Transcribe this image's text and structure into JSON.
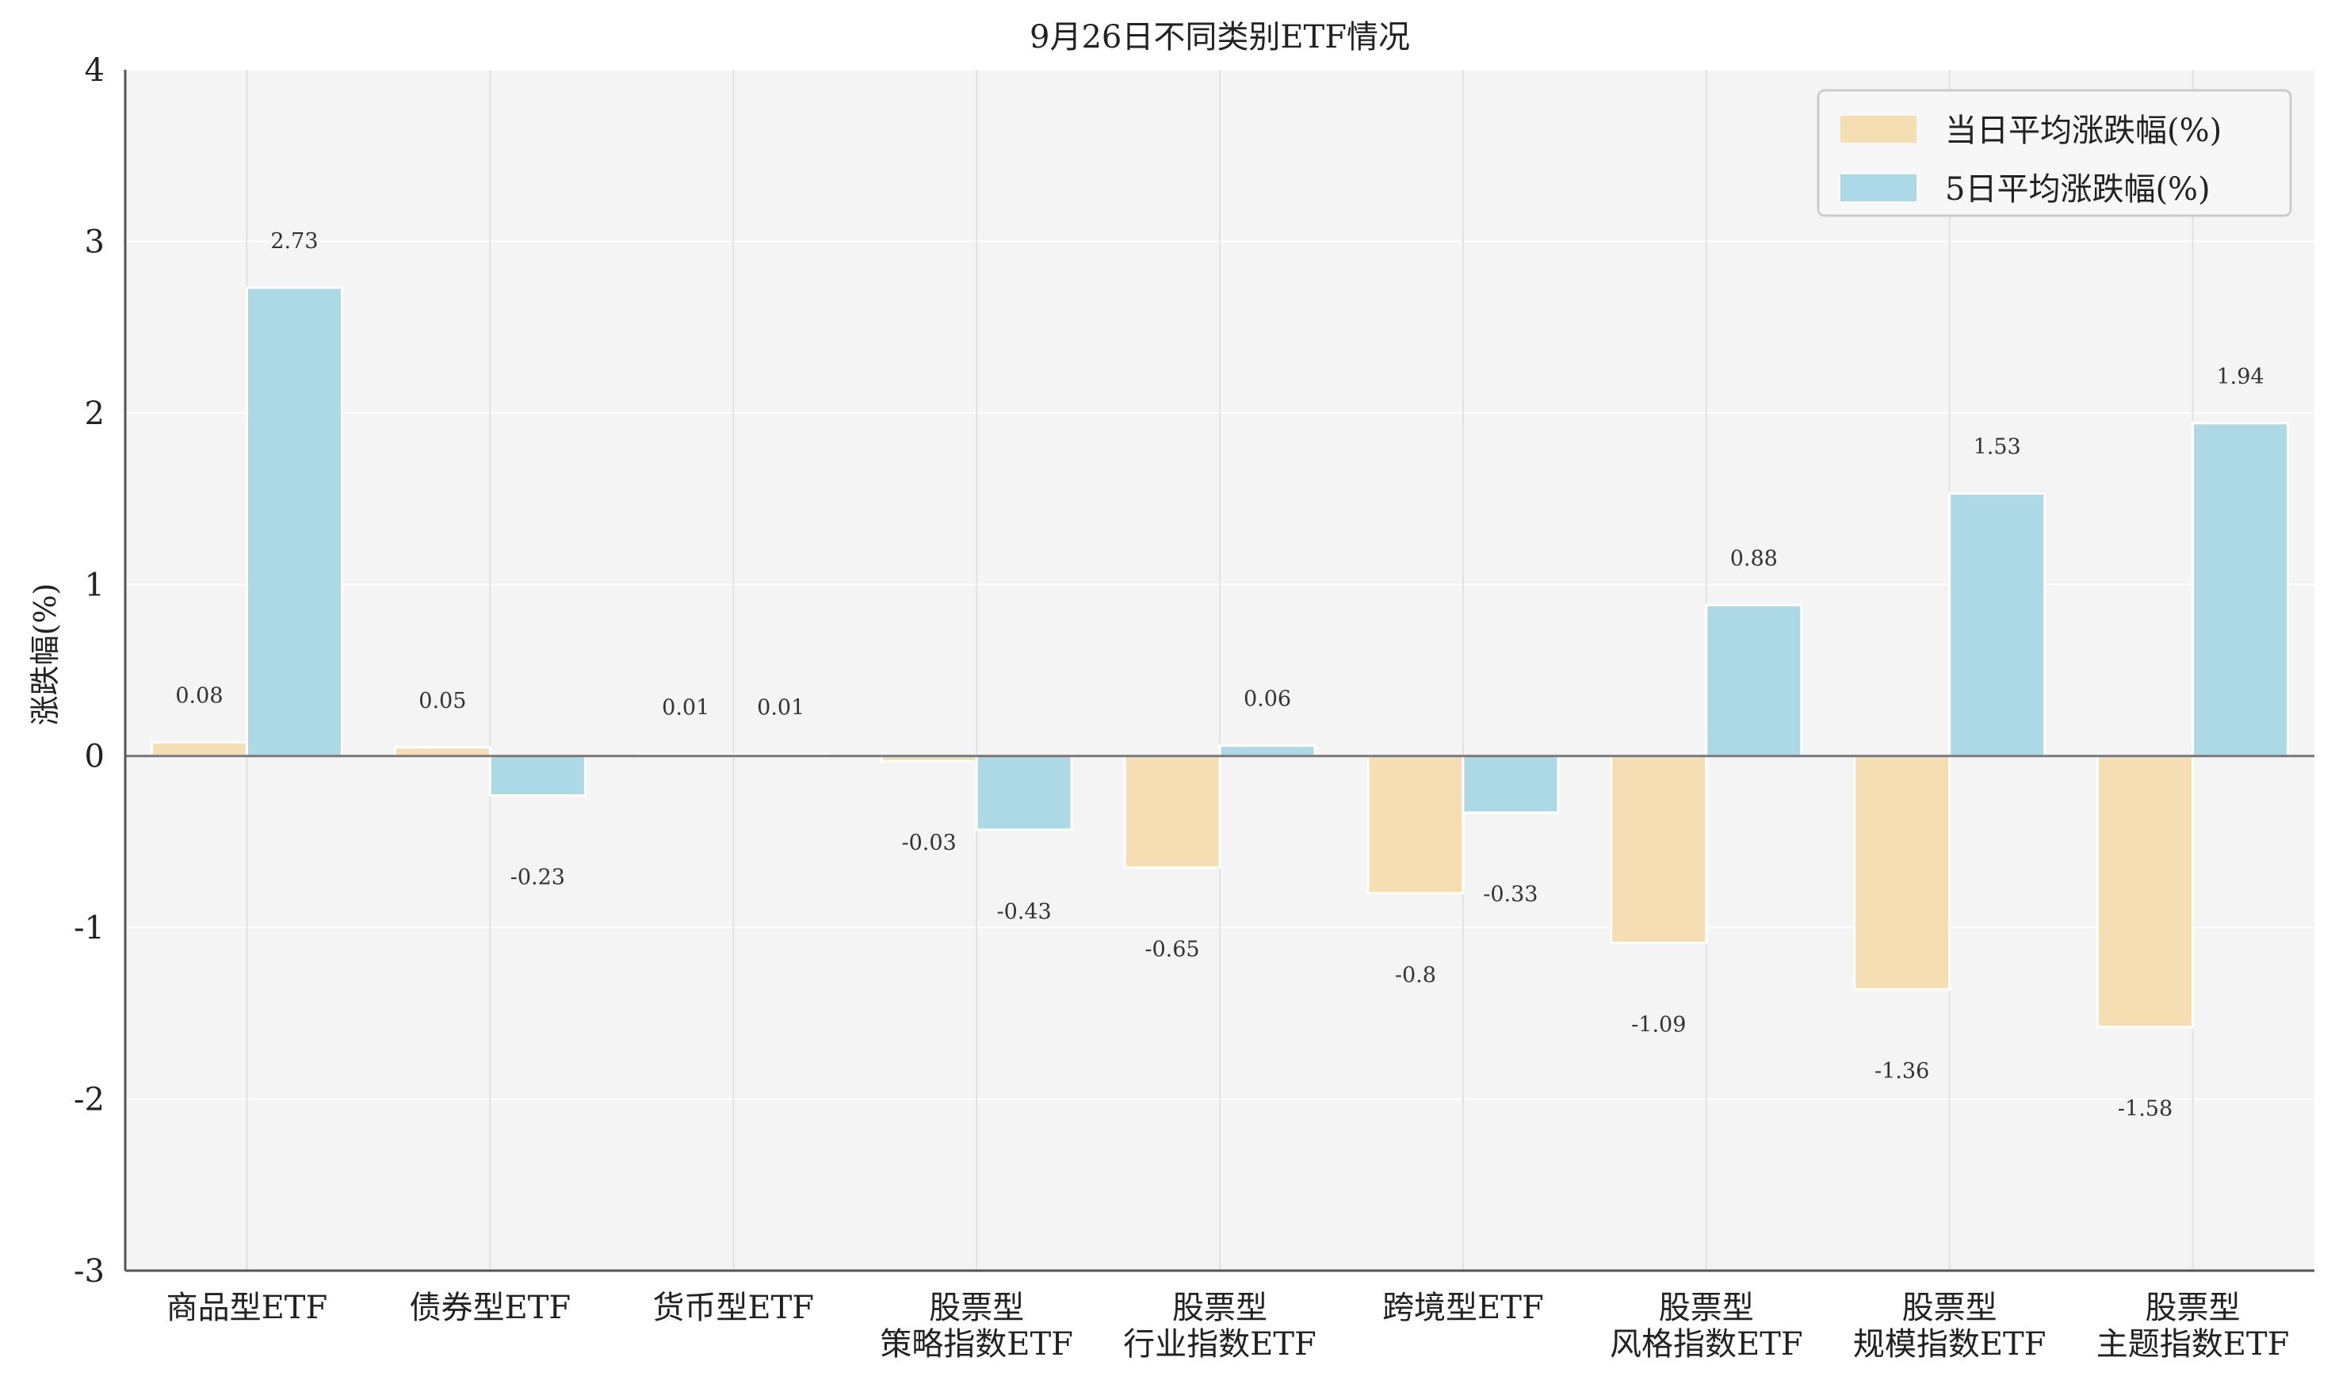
{
  "chart_data": {
    "type": "bar",
    "title": "9月26日不同类别ETF情况",
    "xlabel": "",
    "ylabel": "涨跌幅(%)",
    "ylim": [
      -3,
      4
    ],
    "yticks": [
      4,
      3,
      2,
      1,
      0,
      -1,
      -2,
      -3
    ],
    "grid": true,
    "legend_position": "top-right",
    "categories": [
      "商品型ETF",
      "债券型ETF",
      "货币型ETF",
      "股票型\n策略指数ETF",
      "股票型\n行业指数ETF",
      "跨境型ETF",
      "股票型\n风格指数ETF",
      "股票型\n规模指数ETF",
      "股票型\n主题指数ETF"
    ],
    "series": [
      {
        "name": "当日平均涨跌幅(%)",
        "color": "#F5DEB3",
        "values": [
          0.08,
          0.05,
          0.01,
          -0.03,
          -0.65,
          -0.8,
          -1.09,
          -1.36,
          -1.58
        ],
        "labels": [
          "0.08",
          "0.05",
          "0.01",
          "-0.03",
          "-0.65",
          "-0.8",
          "-1.09",
          "-1.36",
          "-1.58"
        ]
      },
      {
        "name": "5日平均涨跌幅(%)",
        "color": "#ADD8E6",
        "values": [
          2.73,
          -0.23,
          0.01,
          -0.43,
          0.06,
          -0.33,
          0.88,
          1.53,
          1.94
        ],
        "labels": [
          "2.73",
          "-0.23",
          "0.01",
          "-0.43",
          "0.06",
          "-0.33",
          "0.88",
          "1.53",
          "1.94"
        ]
      }
    ]
  },
  "colors": {
    "plot_background": "#F4F4F4",
    "grid": "#FFFFFF",
    "category_grid": "#E2E2E2",
    "axis": "#555555",
    "zero_line": "#777777"
  }
}
